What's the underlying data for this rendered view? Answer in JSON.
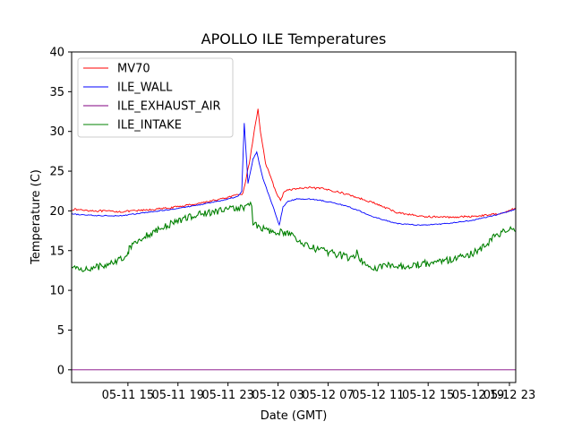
{
  "chart_data": {
    "type": "line",
    "title": "APOLLO ILE Temperatures",
    "xlabel": "Date (GMT)",
    "ylabel": "Temperature (C)",
    "ylim": [
      -1.6,
      40
    ],
    "xlim_hours": [
      0,
      35.5
    ],
    "yticks": [
      0,
      5,
      10,
      15,
      20,
      25,
      30,
      35,
      40
    ],
    "xticks": [
      {
        "hour": 4.5,
        "label": "05-11 15"
      },
      {
        "hour": 8.5,
        "label": "05-11 19"
      },
      {
        "hour": 12.5,
        "label": "05-11 23"
      },
      {
        "hour": 16.5,
        "label": "05-12 03"
      },
      {
        "hour": 20.5,
        "label": "05-12 07"
      },
      {
        "hour": 24.5,
        "label": "05-12 11"
      },
      {
        "hour": 28.5,
        "label": "05-12 15"
      },
      {
        "hour": 32.5,
        "label": "05-12 19"
      },
      {
        "hour": 35.0,
        "label": "05-12 23"
      }
    ],
    "grid": false,
    "legend_position": "top-left",
    "series": [
      {
        "name": "MV70",
        "color": "#ff0000",
        "x": [
          0,
          2,
          4,
          6,
          8,
          10,
          12,
          13.3,
          13.7,
          14.2,
          14.7,
          14.9,
          15.1,
          15.5,
          16.0,
          16.5,
          16.7,
          17.0,
          18.0,
          19.0,
          20.0,
          21.0,
          22.0,
          23.0,
          24.0,
          26.0,
          28.0,
          30.0,
          32.0,
          34.0,
          35.5
        ],
        "values": [
          20.2,
          20.0,
          19.9,
          20.1,
          20.4,
          20.9,
          21.5,
          22.0,
          22.2,
          26.0,
          31.0,
          32.8,
          30.0,
          26.0,
          23.8,
          21.8,
          21.3,
          22.5,
          22.8,
          22.9,
          22.8,
          22.5,
          22.1,
          21.6,
          21.1,
          19.8,
          19.3,
          19.2,
          19.3,
          19.6,
          20.3
        ]
      },
      {
        "name": "ILE_WALL",
        "color": "#0000ff",
        "x": [
          0,
          2,
          4,
          6,
          8,
          10,
          12,
          13.3,
          13.6,
          13.8,
          14.1,
          14.5,
          14.8,
          15.0,
          15.3,
          16.0,
          16.6,
          16.9,
          17.3,
          18.0,
          19.0,
          20.0,
          21.0,
          22.0,
          23.0,
          24.0,
          26.0,
          28.0,
          30.0,
          32.0,
          34.0,
          35.5
        ],
        "values": [
          19.6,
          19.4,
          19.4,
          19.8,
          20.2,
          20.7,
          21.3,
          21.8,
          22.5,
          31.0,
          23.5,
          26.5,
          27.4,
          26.0,
          24.0,
          21.0,
          18.2,
          20.5,
          21.2,
          21.5,
          21.5,
          21.3,
          21.0,
          20.6,
          20.0,
          19.3,
          18.4,
          18.2,
          18.4,
          18.8,
          19.5,
          20.2
        ]
      },
      {
        "name": "ILE_EXHAUST_AIR",
        "color": "#800080",
        "x": [
          0,
          35.5
        ],
        "values": [
          0.0,
          0.0
        ]
      },
      {
        "name": "ILE_INTAKE",
        "color": "#008000",
        "x": [
          0,
          1,
          2,
          3,
          4,
          4.5,
          4.6,
          5.5,
          6.5,
          7.5,
          8.5,
          9.5,
          10.5,
          11.5,
          12.5,
          13.5,
          14.2,
          14.4,
          14.5,
          15.0,
          16.0,
          16.5,
          16.7,
          17.5,
          18.0,
          19.0,
          20.0,
          21.0,
          22.0,
          22.7,
          22.8,
          23.0,
          24.0,
          24.5,
          24.8,
          26.0,
          28.0,
          30.0,
          32.0,
          33.0,
          34.0,
          35.0,
          35.5
        ],
        "values": [
          12.8,
          12.7,
          12.9,
          13.4,
          14.0,
          14.5,
          15.5,
          16.5,
          17.3,
          18.0,
          18.8,
          19.3,
          19.7,
          19.9,
          20.2,
          20.4,
          20.7,
          21.0,
          18.3,
          18.0,
          17.4,
          16.8,
          17.4,
          17.1,
          16.2,
          15.5,
          15.0,
          14.6,
          14.2,
          14.1,
          15.3,
          13.9,
          13.0,
          12.6,
          13.1,
          13.0,
          13.3,
          13.8,
          14.6,
          15.5,
          17.0,
          17.6,
          17.4
        ]
      }
    ]
  }
}
